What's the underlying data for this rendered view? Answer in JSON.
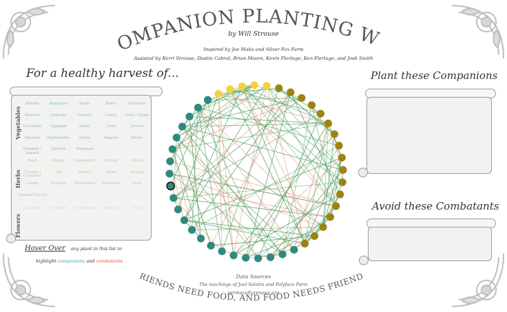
{
  "header": {
    "title": "COMPANION PLANTING WEB",
    "author": "by Will Strouse",
    "inspired": "Inspired by Joe Mako and Silver Fox Farm",
    "assisted": "Assisted by Kerri Strouse, Dustin Cabral, Brian Moore, Kevin Flerlage, Ken Flerlage, and Josh Smith"
  },
  "left_panel": {
    "heading": "For a healthy harvest of...",
    "categories": [
      {
        "label": "Vegetables",
        "items": [
          "Alliums",
          "Asparagus",
          "Beans",
          "Beets",
          "Brassicas",
          "Broccoli",
          "Cabbage",
          "Carrots",
          "Celery",
          "Corn / Maize",
          "Cucumber",
          "Eggplant",
          "Garlic",
          "Leek",
          "Lettuce",
          "Mustard",
          "Nightshades",
          "Onion",
          "Peppers",
          "Potato",
          "Pumpkin / Squash",
          "Spinach",
          "Tomatoes"
        ]
      },
      {
        "label": "Herbs",
        "items": [
          "Basil",
          "Borage",
          "Chamomile",
          "Chervil",
          "Chives",
          "Cilantro / Coriander",
          "Dill",
          "Fennel",
          "Hemp",
          "Hyssop",
          "Lovage",
          "Oregano",
          "Peppermint",
          "Rosemary",
          "Sage",
          "Summer Savory"
        ]
      },
      {
        "label": "Flowers",
        "items": [
          "Calendula",
          "Marigold",
          "Nasturtium",
          "Petunia",
          "Tansy"
        ]
      }
    ],
    "hint_hover": "Hover Over",
    "hint_rest": "any plant in this list to",
    "hint_line2_a": "highlight",
    "hint_companions": "companions",
    "hint_and": "and",
    "hint_combatants": "combatants"
  },
  "right_panel": {
    "companions_heading": "Plant these Companions",
    "combatants_heading": "Avoid these Combatants"
  },
  "footer": {
    "sources_title": "Data Sources",
    "source1": "The teachings of Joel Salatin and Polyface Farm",
    "source2": "permaculturenews.org",
    "motto": "FRIENDS NEED FOOD, AND FOOD NEEDS FRIENDS"
  },
  "colors": {
    "teal": "#2e8a7c",
    "yellow": "#f2d33b",
    "olive": "#9c8414",
    "companion_line": "#4a9a58",
    "combatant_line": "#e08a6a",
    "companions_text": "#3aa9b8",
    "combatants_text": "#e0502a"
  }
}
